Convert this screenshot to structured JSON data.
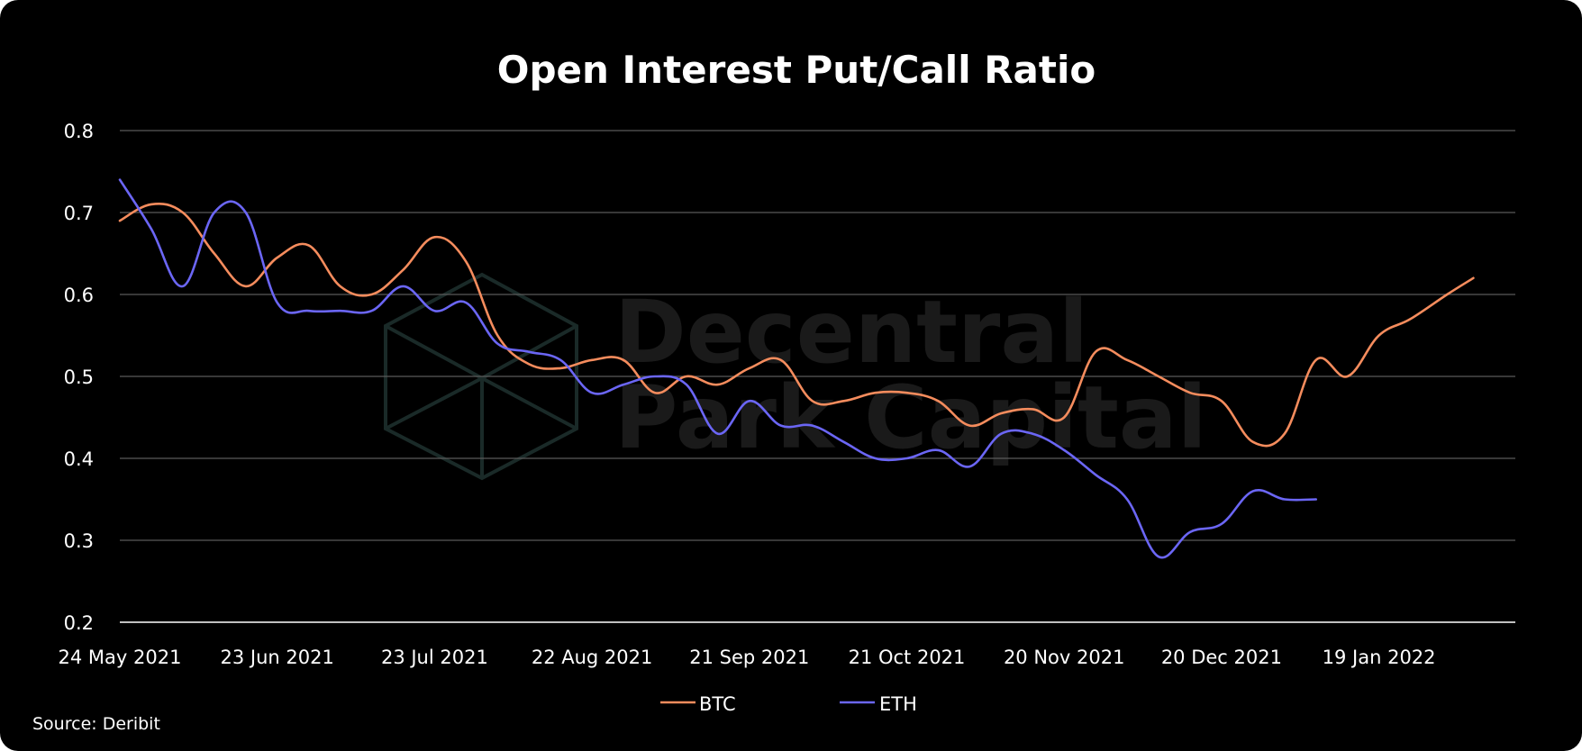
{
  "chart_data": {
    "type": "line",
    "title": "Open Interest Put/Call Ratio",
    "xlabel": "",
    "ylabel": "",
    "ylim": [
      0.2,
      0.8
    ],
    "yticks": [
      "0.2",
      "0.3",
      "0.4",
      "0.5",
      "0.6",
      "0.7",
      "0.8"
    ],
    "xlim": [
      "2021-05-24",
      "2022-02-14"
    ],
    "xticks": [
      {
        "date": "2021-05-24",
        "label": "24 May 2021"
      },
      {
        "date": "2021-06-23",
        "label": "23 Jun 2021"
      },
      {
        "date": "2021-07-23",
        "label": "23 Jul 2021"
      },
      {
        "date": "2021-08-22",
        "label": "22 Aug 2021"
      },
      {
        "date": "2021-09-21",
        "label": "21 Sep 2021"
      },
      {
        "date": "2021-10-21",
        "label": "21 Oct 2021"
      },
      {
        "date": "2021-11-20",
        "label": "20 Nov 2021"
      },
      {
        "date": "2021-12-20",
        "label": "20 Dec 2021"
      },
      {
        "date": "2022-01-19",
        "label": "19 Jan 2022"
      }
    ],
    "grid": true,
    "legend_position": "bottom-center",
    "series": [
      {
        "name": "BTC",
        "color": "#f58c5d",
        "points": [
          [
            "2021-05-24",
            0.69
          ],
          [
            "2021-05-30",
            0.71
          ],
          [
            "2021-06-05",
            0.7
          ],
          [
            "2021-06-11",
            0.65
          ],
          [
            "2021-06-17",
            0.61
          ],
          [
            "2021-06-23",
            0.645
          ],
          [
            "2021-06-29",
            0.66
          ],
          [
            "2021-07-05",
            0.61
          ],
          [
            "2021-07-11",
            0.6
          ],
          [
            "2021-07-17",
            0.63
          ],
          [
            "2021-07-23",
            0.67
          ],
          [
            "2021-07-29",
            0.64
          ],
          [
            "2021-08-04",
            0.55
          ],
          [
            "2021-08-10",
            0.515
          ],
          [
            "2021-08-16",
            0.51
          ],
          [
            "2021-08-22",
            0.52
          ],
          [
            "2021-08-28",
            0.52
          ],
          [
            "2021-09-03",
            0.48
          ],
          [
            "2021-09-09",
            0.5
          ],
          [
            "2021-09-15",
            0.49
          ],
          [
            "2021-09-21",
            0.51
          ],
          [
            "2021-09-27",
            0.52
          ],
          [
            "2021-10-03",
            0.47
          ],
          [
            "2021-10-09",
            0.47
          ],
          [
            "2021-10-15",
            0.48
          ],
          [
            "2021-10-21",
            0.48
          ],
          [
            "2021-10-27",
            0.47
          ],
          [
            "2021-11-02",
            0.44
          ],
          [
            "2021-11-08",
            0.455
          ],
          [
            "2021-11-14",
            0.46
          ],
          [
            "2021-11-20",
            0.45
          ],
          [
            "2021-11-26",
            0.53
          ],
          [
            "2021-12-02",
            0.52
          ],
          [
            "2021-12-08",
            0.5
          ],
          [
            "2021-12-14",
            0.48
          ],
          [
            "2021-12-20",
            0.47
          ],
          [
            "2021-12-26",
            0.42
          ],
          [
            "2022-01-01",
            0.43
          ],
          [
            "2022-01-07",
            0.52
          ],
          [
            "2022-01-13",
            0.5
          ],
          [
            "2022-01-19",
            0.55
          ],
          [
            "2022-01-25",
            0.57
          ],
          [
            "2022-02-01",
            0.6
          ],
          [
            "2022-02-06",
            0.62
          ]
        ]
      },
      {
        "name": "ETH",
        "color": "#6b66f5",
        "points": [
          [
            "2021-05-24",
            0.74
          ],
          [
            "2021-05-30",
            0.68
          ],
          [
            "2021-06-05",
            0.61
          ],
          [
            "2021-06-11",
            0.7
          ],
          [
            "2021-06-17",
            0.7
          ],
          [
            "2021-06-23",
            0.59
          ],
          [
            "2021-06-29",
            0.58
          ],
          [
            "2021-07-05",
            0.58
          ],
          [
            "2021-07-11",
            0.58
          ],
          [
            "2021-07-17",
            0.61
          ],
          [
            "2021-07-23",
            0.58
          ],
          [
            "2021-07-29",
            0.59
          ],
          [
            "2021-08-04",
            0.54
          ],
          [
            "2021-08-10",
            0.53
          ],
          [
            "2021-08-16",
            0.52
          ],
          [
            "2021-08-22",
            0.48
          ],
          [
            "2021-08-28",
            0.49
          ],
          [
            "2021-09-03",
            0.5
          ],
          [
            "2021-09-09",
            0.49
          ],
          [
            "2021-09-15",
            0.43
          ],
          [
            "2021-09-21",
            0.47
          ],
          [
            "2021-09-27",
            0.44
          ],
          [
            "2021-10-03",
            0.44
          ],
          [
            "2021-10-09",
            0.42
          ],
          [
            "2021-10-15",
            0.4
          ],
          [
            "2021-10-21",
            0.4
          ],
          [
            "2021-10-27",
            0.41
          ],
          [
            "2021-11-02",
            0.39
          ],
          [
            "2021-11-08",
            0.43
          ],
          [
            "2021-11-14",
            0.43
          ],
          [
            "2021-11-20",
            0.41
          ],
          [
            "2021-11-26",
            0.38
          ],
          [
            "2021-12-02",
            0.35
          ],
          [
            "2021-12-08",
            0.28
          ],
          [
            "2021-12-14",
            0.31
          ],
          [
            "2021-12-20",
            0.32
          ],
          [
            "2021-12-26",
            0.36
          ],
          [
            "2022-01-01",
            0.35
          ],
          [
            "2022-01-07",
            0.35
          ]
        ]
      }
    ],
    "watermark": {
      "line1": "Decentral",
      "line2": "Park Capital"
    }
  },
  "source": "Source: Deribit"
}
